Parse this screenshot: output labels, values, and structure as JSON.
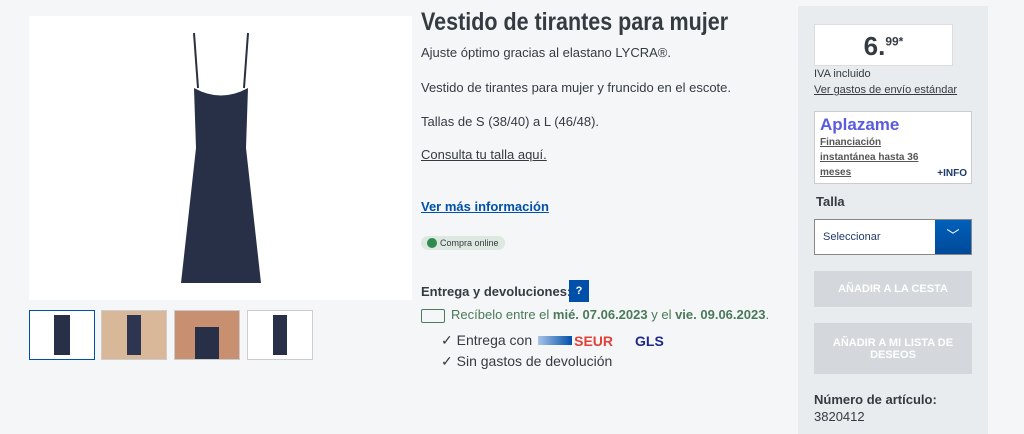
{
  "product": {
    "title": "Vestido de tirantes para mujer",
    "lines": [
      "Ajuste óptimo gracias al elastano LYCRA®.",
      "Vestido de tirantes para mujer y fruncido en el escote.",
      "Tallas de S (38/40) a L (46/48)."
    ],
    "size_link": "Consulta tu talla aquí.",
    "more_info": "Ver más información",
    "badge": "Compra online"
  },
  "delivery": {
    "heading": "Entrega y devoluciones:",
    "help": "?",
    "prefix": "Recíbelo entre el ",
    "date1": "mié. 07.06.2023",
    "mid": " y el ",
    "date2": "vie. 09.06.2023",
    "suffix": ".",
    "carrier_label": "✓ Entrega con",
    "carriers": [
      "SEUR",
      "GLS"
    ],
    "returns": "✓ Sin gastos de devolución"
  },
  "sidebar": {
    "price_int": "6.",
    "price_dec": "99*",
    "vat": "IVA incluido",
    "shipping_link": "Ver gastos de envío estándar",
    "aplazame": {
      "logo": "Aplazame",
      "text": "Financiación instantánea hasta 36 meses",
      "info": "+INFO"
    },
    "size_label": "Talla",
    "size_select": "Seleccionar",
    "add_cart": "AÑADIR A LA CESTA",
    "add_wishlist": "AÑADIR A MI LISTA DE DESEOS",
    "article_label": "Número de artículo:",
    "article_number": "3820412"
  },
  "colors": {
    "accent": "#0050aa",
    "green": "#4a7a5a",
    "seur": "#e2413a",
    "gls": "#1e2a8a"
  }
}
